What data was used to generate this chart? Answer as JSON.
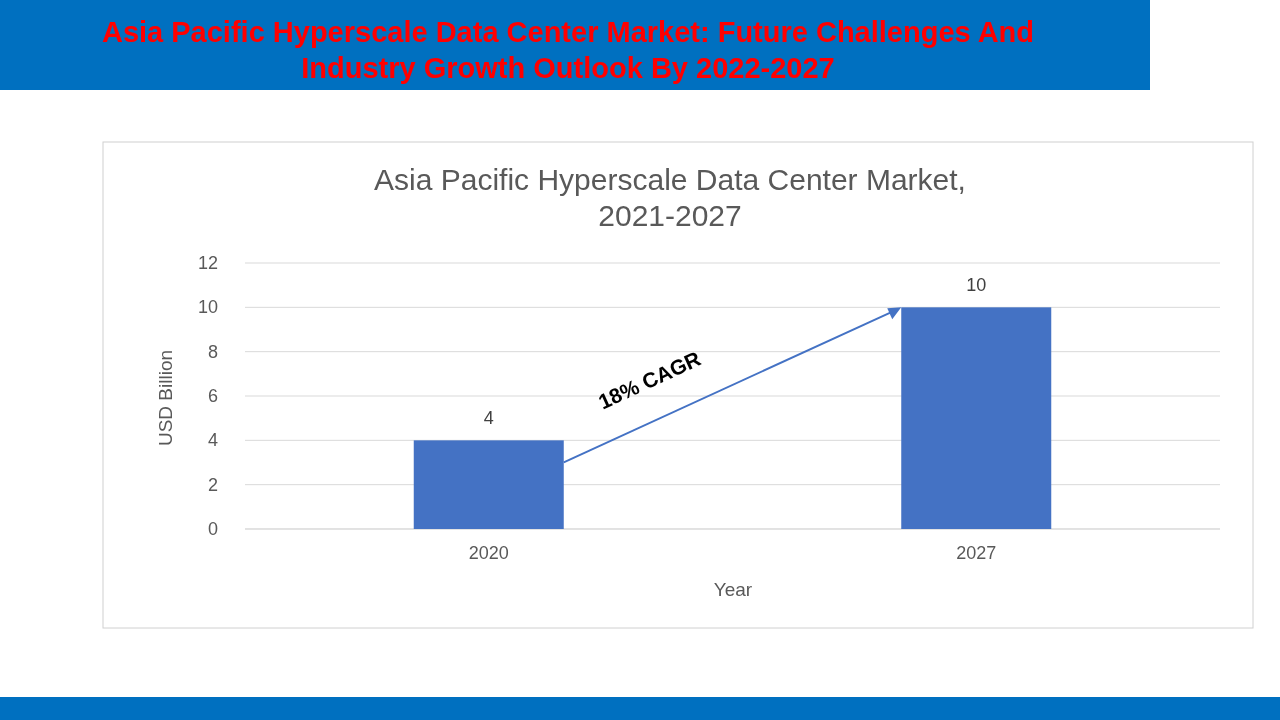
{
  "chart_data": {
    "type": "bar",
    "title": "Asia Pacific Hyperscale Data Center Market: Future Challenges And Industry Growth Outlook By 2022-2027",
    "subtitle": "Asia Pacific Hyperscale Data Center Market,\n2021-2027",
    "xlabel": "Year",
    "ylabel": "USD Billion",
    "categories": [
      "2020",
      "2027"
    ],
    "values": [
      4,
      10
    ],
    "color": "#4472c4",
    "ylim": [
      0,
      12
    ],
    "yticks": [
      0,
      2,
      4,
      6,
      8,
      10,
      12
    ],
    "grid": "y",
    "data_labels": true,
    "annotations": [
      "18% CAGR"
    ]
  }
}
